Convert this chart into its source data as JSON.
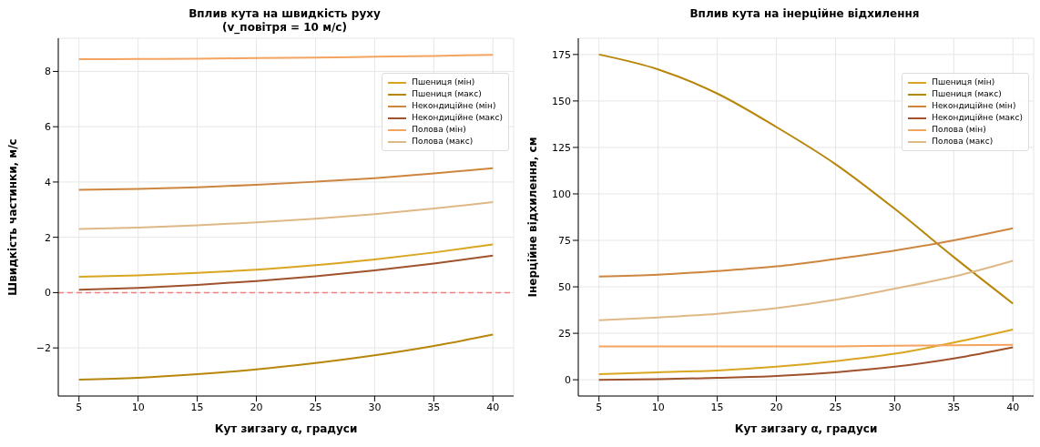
{
  "chart_data": [
    {
      "type": "line",
      "title": "Вплив кута на швидкість руху\n(v_повітря = 10 м/с)",
      "xlabel": "Кут зигзагу α, градуси",
      "ylabel": "Швидкість частинки, м/с",
      "x": [
        5,
        10,
        15,
        20,
        25,
        30,
        35,
        40
      ],
      "series": [
        {
          "name": "Пшениця (мін)",
          "color": "#daa520",
          "values": [
            0.57,
            0.62,
            0.71,
            0.83,
            0.99,
            1.2,
            1.45,
            1.74
          ]
        },
        {
          "name": "Пшениця (макс)",
          "color": "#b8860b",
          "values": [
            -3.15,
            -3.08,
            -2.95,
            -2.78,
            -2.55,
            -2.27,
            -1.93,
            -1.52
          ]
        },
        {
          "name": "Некондиційне (мін)",
          "color": "#cd853f",
          "values": [
            3.72,
            3.75,
            3.81,
            3.9,
            4.01,
            4.14,
            4.31,
            4.5
          ]
        },
        {
          "name": "Некондиційне (макс)",
          "color": "#a0522d",
          "values": [
            0.1,
            0.17,
            0.28,
            0.42,
            0.59,
            0.8,
            1.05,
            1.34
          ]
        },
        {
          "name": "Полова (мін)",
          "color": "#f4a460",
          "values": [
            8.44,
            8.45,
            8.46,
            8.48,
            8.5,
            8.53,
            8.56,
            8.6
          ]
        },
        {
          "name": "Полова (макс)",
          "color": "#deb887",
          "values": [
            2.3,
            2.35,
            2.43,
            2.54,
            2.67,
            2.84,
            3.04,
            3.27
          ]
        }
      ],
      "xlim": [
        3.25,
        41.75
      ],
      "xticks": [
        5,
        10,
        15,
        20,
        25,
        30,
        35,
        40
      ],
      "ylim": [
        -3.74,
        9.2
      ],
      "yticks": [
        -2,
        0,
        2,
        4,
        6,
        8
      ],
      "ref_lines": [
        {
          "axis": "y",
          "value": 0,
          "color": "#f08080",
          "line_style": "dashed"
        }
      ],
      "grid": true,
      "legend": "top right",
      "marker": "none",
      "line_style": "solid"
    },
    {
      "type": "line",
      "title": "Вплив кута на інерційне відхилення",
      "xlabel": "Кут зигзагу α, градуси",
      "ylabel": "Інерційне відхилення, см",
      "x": [
        5,
        10,
        15,
        20,
        25,
        30,
        35,
        40
      ],
      "series": [
        {
          "name": "Пшениця (мін)",
          "color": "#daa520",
          "values": [
            3,
            4,
            5,
            7,
            10,
            14,
            20,
            27
          ]
        },
        {
          "name": "Пшениця (макс)",
          "color": "#b8860b",
          "values": [
            175,
            167,
            154,
            136,
            116,
            92,
            66,
            41
          ]
        },
        {
          "name": "Некондиційне (мін)",
          "color": "#cd853f",
          "values": [
            55.5,
            56.5,
            58.5,
            61,
            65,
            69.5,
            75,
            81.5
          ]
        },
        {
          "name": "Некондиційне (макс)",
          "color": "#a0522d",
          "values": [
            0,
            0.3,
            1,
            2,
            4,
            7,
            11.5,
            17.5
          ]
        },
        {
          "name": "Полова (мін)",
          "color": "#f4a460",
          "values": [
            18,
            18,
            18,
            18,
            18,
            18.3,
            18.5,
            18.8
          ]
        },
        {
          "name": "Полова (макс)",
          "color": "#deb887",
          "values": [
            32,
            33.5,
            35.5,
            38.5,
            43,
            49,
            55.5,
            64
          ]
        }
      ],
      "xlim": [
        3.25,
        41.75
      ],
      "xticks": [
        5,
        10,
        15,
        20,
        25,
        30,
        35,
        40
      ],
      "ylim": [
        -8.75,
        183.75
      ],
      "yticks": [
        0,
        25,
        50,
        75,
        100,
        125,
        150,
        175
      ],
      "grid": true,
      "legend": "top right",
      "marker": "none",
      "line_style": "solid"
    }
  ]
}
